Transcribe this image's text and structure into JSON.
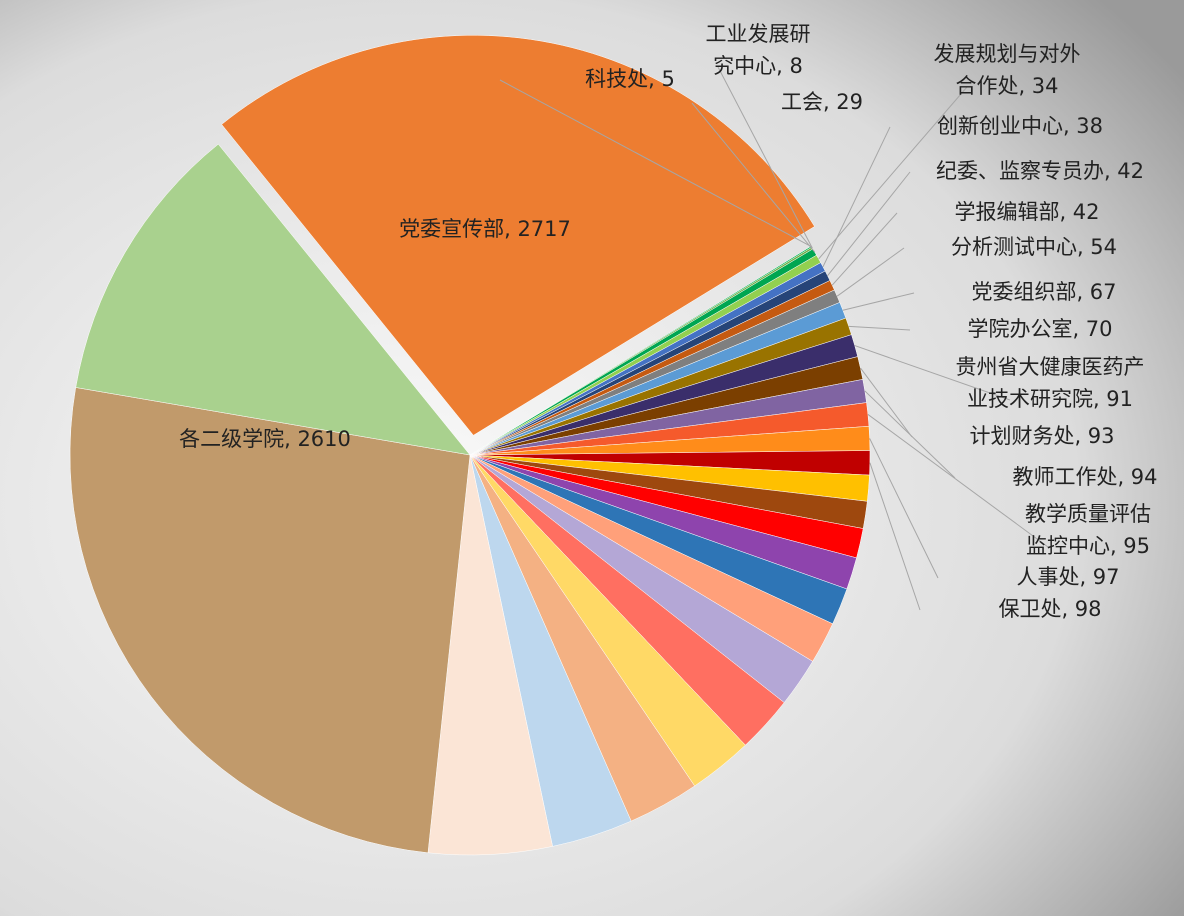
{
  "chart_data": {
    "type": "pie",
    "labels": [
      [
        "党委宣传部, 2717"
      ],
      [
        "科技处, 5"
      ],
      [
        "工业发展研",
        "究中心, 8"
      ],
      [
        "工会, 29"
      ],
      [
        "发展规划与对外",
        "合作处, 34"
      ],
      [
        "创新创业中心, 38"
      ],
      [
        "纪委、监察专员办, 42"
      ],
      [
        "学报编辑部, 42"
      ],
      [
        "分析测试中心, 54"
      ],
      [
        "党委组织部, 67"
      ],
      [
        "学院办公室, 70"
      ],
      [
        "贵州省大健康医药产",
        "业技术研究院, 91"
      ],
      [
        "计划财务处, 93"
      ],
      [
        "教师工作处, 94"
      ],
      [
        "教学质量评估",
        "监控中心, 95"
      ],
      [
        "人事处, 97"
      ],
      [
        "保卫处, 98"
      ],
      null,
      null,
      null,
      null,
      null,
      null,
      null,
      null,
      null,
      null,
      null,
      null,
      [
        "各二级学院, 2610"
      ],
      null
    ],
    "values": [
      2717,
      5,
      8,
      29,
      34,
      38,
      42,
      42,
      54,
      67,
      70,
      91,
      93,
      94,
      95,
      97,
      98,
      105,
      110,
      120,
      130,
      150,
      170,
      200,
      230,
      260,
      290,
      330,
      500,
      2610,
      1150
    ],
    "colors": [
      "#ed7d31",
      "#00b050",
      "#70ad47",
      "#00a651",
      "#92d050",
      "#4472c4",
      "#264478",
      "#c55a11",
      "#7f7f7f",
      "#5b9bd5",
      "#997300",
      "#3a2e6b",
      "#7b3f00",
      "#8064a2",
      "#f55a2c",
      "#ff8c1a",
      "#c00000",
      "#ffc000",
      "#9e480e",
      "#ff0000",
      "#8e44ad",
      "#2e75b6",
      "#ffa07a",
      "#b4a7d6",
      "#ff6f61",
      "#ffd966",
      "#f4b183",
      "#bdd7ee",
      "#fbe5d6",
      "#c19a6b",
      "#a9d18e"
    ],
    "exploded": [
      0
    ]
  }
}
